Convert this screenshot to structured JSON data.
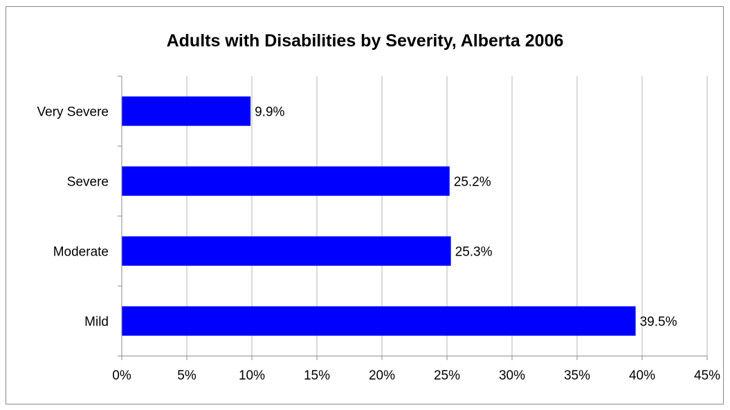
{
  "chart_data": {
    "type": "bar",
    "orientation": "horizontal",
    "title": "Adults with Disabilities by Severity, Alberta 2006",
    "categories": [
      "Very Severe",
      "Severe",
      "Moderate",
      "Mild"
    ],
    "values": [
      9.9,
      25.2,
      25.3,
      39.5
    ],
    "data_labels": [
      "9.9%",
      "25.2%",
      "25.3%",
      "39.5%"
    ],
    "x_ticks": [
      0,
      5,
      10,
      15,
      20,
      25,
      30,
      35,
      40,
      45
    ],
    "x_tick_labels": [
      "0%",
      "5%",
      "10%",
      "15%",
      "20%",
      "25%",
      "30%",
      "35%",
      "40%",
      "45%"
    ],
    "xlim": [
      0,
      45
    ],
    "xlabel": "",
    "ylabel": "",
    "grid": "vertical",
    "legend": "none",
    "bar_color": "#0000ff"
  }
}
